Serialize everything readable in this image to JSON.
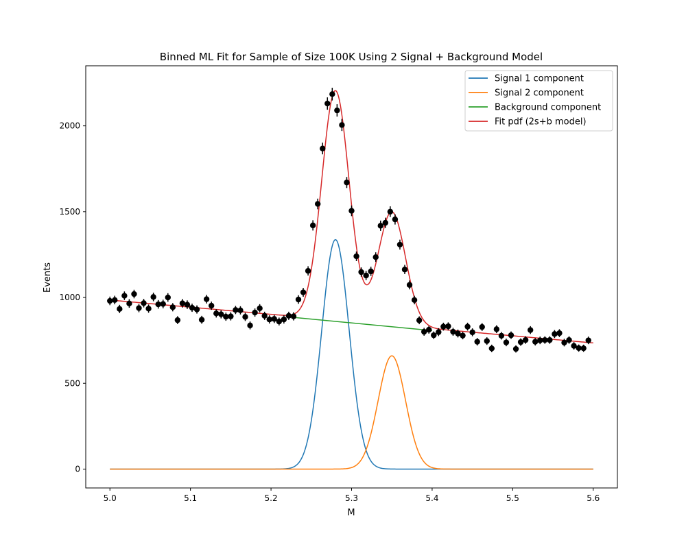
{
  "chart_data": {
    "type": "line",
    "title": "Binned ML Fit for Sample of Size 100K Using 2 Signal + Background Model",
    "xlabel": "M",
    "ylabel": "Events",
    "xlim": [
      4.97,
      5.63
    ],
    "ylim": [
      -110,
      2350
    ],
    "xticks": [
      5.0,
      5.1,
      5.2,
      5.3,
      5.4,
      5.5,
      5.6
    ],
    "xtick_labels": [
      "5.0",
      "5.1",
      "5.2",
      "5.3",
      "5.4",
      "5.5",
      "5.6"
    ],
    "yticks": [
      0,
      500,
      1000,
      1500,
      2000
    ],
    "ytick_labels": [
      "0",
      "500",
      "1000",
      "1500",
      "2000"
    ],
    "grid": false,
    "legend_position": "top-right",
    "series": [
      {
        "name": "Signal 1 component",
        "color": "#1f77b4",
        "model": "gaussian",
        "mean": 5.28,
        "sigma": 0.017,
        "amplitude": 1337,
        "x_range": [
          5.0,
          5.6
        ]
      },
      {
        "name": "Signal 2 component",
        "color": "#ff7f0e",
        "model": "gaussian",
        "mean": 5.35,
        "sigma": 0.017,
        "amplitude": 660,
        "x_range": [
          5.0,
          5.6
        ]
      },
      {
        "name": "Background component",
        "color": "#2ca02c",
        "model": "linear",
        "x": [
          5.23,
          5.4
        ],
        "y": [
          883,
          807
        ]
      },
      {
        "name": "Fit pdf (2s+b model)",
        "color": "#d62728",
        "model": "sum",
        "x_range": [
          5.0,
          5.6
        ]
      }
    ],
    "background_model": {
      "model": "linear",
      "x": [
        5.0,
        5.6
      ],
      "y": [
        985,
        735
      ]
    },
    "data_points": {
      "color": "#000000",
      "x_start": 5.0,
      "x_step": 0.006,
      "y": [
        980,
        985,
        933,
        1010,
        965,
        1020,
        938,
        967,
        935,
        1003,
        960,
        962,
        1000,
        943,
        868,
        966,
        958,
        940,
        930,
        870,
        990,
        952,
        907,
        902,
        888,
        890,
        927,
        925,
        887,
        837,
        912,
        937,
        893,
        872,
        875,
        860,
        872,
        893,
        890,
        988,
        1030,
        1155,
        1420,
        1545,
        1868,
        2130,
        2185,
        2090,
        2005,
        1670,
        1505,
        1240,
        1148,
        1128,
        1152,
        1235,
        1418,
        1435,
        1500,
        1455,
        1308,
        1163,
        1073,
        985,
        867,
        800,
        812,
        780,
        798,
        830,
        832,
        800,
        790,
        778,
        830,
        797,
        742,
        828,
        746,
        703,
        815,
        777,
        738,
        780,
        700,
        740,
        752,
        810,
        742,
        750,
        752,
        752,
        787,
        792,
        737,
        752,
        718,
        705,
        704,
        750
      ],
      "err": [
        25,
        25,
        24,
        25,
        25,
        25,
        24,
        25,
        24,
        25,
        25,
        25,
        25,
        24,
        23,
        25,
        25,
        24,
        24,
        23,
        25,
        24,
        24,
        24,
        24,
        24,
        24,
        24,
        24,
        23,
        24,
        24,
        24,
        24,
        24,
        23,
        24,
        24,
        24,
        25,
        26,
        27,
        30,
        31,
        34,
        36,
        37,
        36,
        35,
        32,
        31,
        28,
        27,
        27,
        27,
        28,
        30,
        30,
        31,
        30,
        29,
        27,
        26,
        25,
        23,
        23,
        23,
        22,
        23,
        23,
        23,
        23,
        23,
        22,
        23,
        23,
        22,
        23,
        22,
        22,
        23,
        22,
        22,
        22,
        21,
        22,
        22,
        23,
        22,
        22,
        22,
        22,
        23,
        23,
        22,
        22,
        22,
        21,
        21,
        22
      ]
    }
  }
}
